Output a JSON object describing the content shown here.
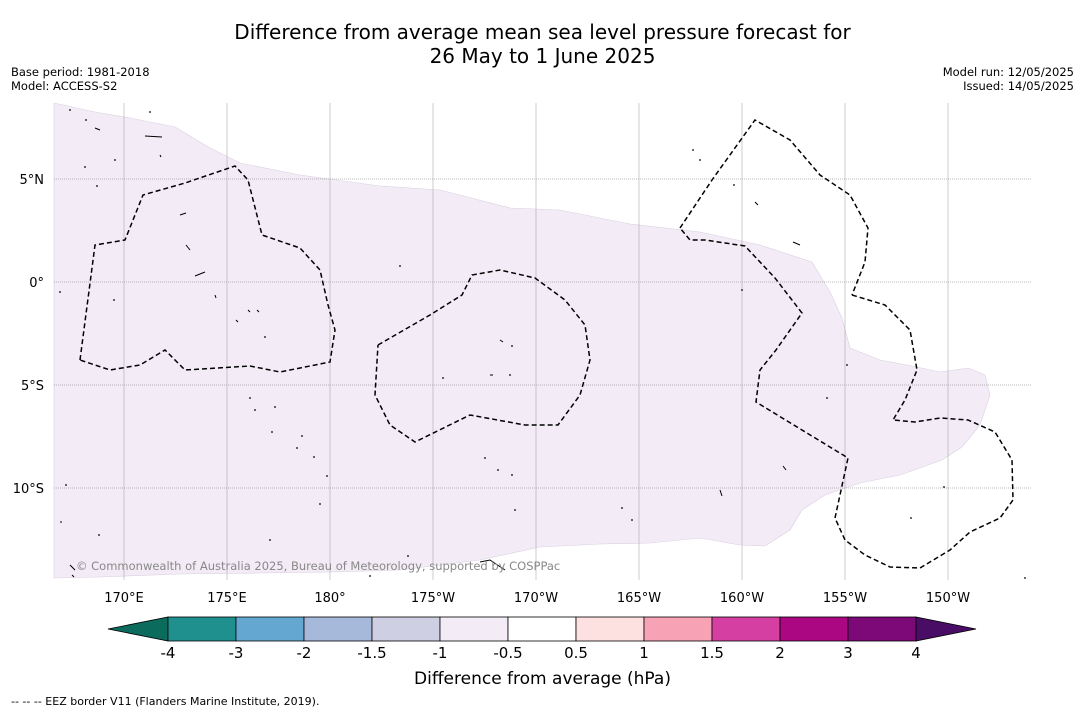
{
  "title": {
    "line1": "Difference from average mean sea level pressure forecast for",
    "line2": "26 May to 1 June 2025"
  },
  "meta": {
    "base_period": "Base period: 1981-2018",
    "model": "Model: ACCESS-S2",
    "model_run": "Model run: 12/05/2025",
    "issued": "Issued: 14/05/2025"
  },
  "map": {
    "lon_ticks": [
      "170°E",
      "175°E",
      "180°",
      "175°W",
      "170°W",
      "165°W",
      "160°W",
      "155°W",
      "150°W"
    ],
    "lat_ticks": [
      "5°N",
      "0°",
      "5°S",
      "10°S"
    ],
    "copyright": "© Commonwealth of Australia 2025, Bureau of Meteorology, supported by COSPPac",
    "anomaly_fill_color": "#f3ecf6",
    "anomaly_category": "-0.5 to -1 hPa"
  },
  "colorbar": {
    "ticks": [
      "-4",
      "-3",
      "-2",
      "-1.5",
      "-1",
      "-0.5",
      "0.5",
      "1",
      "1.5",
      "2",
      "3",
      "4"
    ],
    "colors": [
      "#0b6b5c",
      "#20908f",
      "#64a8d2",
      "#a6b9db",
      "#cfcfe4",
      "#f3ecf6",
      "#ffffff",
      "#fde0e0",
      "#f8a2b6",
      "#d63fa2",
      "#ab0782",
      "#7d0878",
      "#4a0d66"
    ],
    "label": "Difference from average (hPa)"
  },
  "footnote": "--  --  -- EEZ border V11 (Flanders Marine Institute, 2019)."
}
